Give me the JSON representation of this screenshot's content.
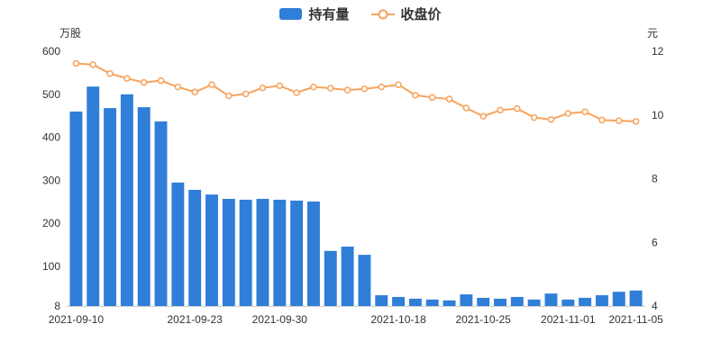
{
  "page": {
    "background": "#ffffff"
  },
  "legend": {
    "items": [
      {
        "label": "持有量",
        "type": "bar",
        "color": "#2f7ed8"
      },
      {
        "label": "收盘价",
        "type": "line",
        "color": "#f7a35c"
      }
    ]
  },
  "chart_data": {
    "type": "bar",
    "subtype": "bar+line combo with dual y-axes",
    "grid": false,
    "legend_position": "top-center",
    "x_ticks": [
      {
        "label": "2021-09-10",
        "index": 0
      },
      {
        "label": "2021-09-23",
        "index": 7
      },
      {
        "label": "2021-09-30",
        "index": 12
      },
      {
        "label": "2021-10-18",
        "index": 19
      },
      {
        "label": "2021-10-25",
        "index": 24
      },
      {
        "label": "2021-11-01",
        "index": 29
      },
      {
        "label": "2021-11-05",
        "index": 33
      }
    ],
    "left_axis": {
      "title": "万股",
      "min": 8,
      "max": 600,
      "ticks": [
        8,
        100,
        200,
        300,
        400,
        500,
        600
      ]
    },
    "right_axis": {
      "title": "元",
      "min": 4,
      "max": 12,
      "ticks": [
        4,
        6,
        8,
        10,
        12
      ]
    },
    "series": [
      {
        "name": "持有量",
        "type": "bar",
        "axis": "left",
        "color": "#2f7ed8",
        "values": [
          460,
          518,
          468,
          500,
          470,
          437,
          295,
          278,
          267,
          257,
          255,
          257,
          255,
          253,
          251,
          136,
          146,
          127,
          33,
          29,
          25,
          23,
          21,
          35,
          27,
          25,
          29,
          23,
          37,
          23,
          27,
          33,
          41,
          44
        ]
      },
      {
        "name": "收盘价",
        "type": "line",
        "axis": "right",
        "color": "#f7a35c",
        "marker": "open-circle",
        "values": [
          11.62,
          11.58,
          11.3,
          11.15,
          11.02,
          11.08,
          10.88,
          10.72,
          10.95,
          10.6,
          10.66,
          10.85,
          10.92,
          10.7,
          10.88,
          10.84,
          10.78,
          10.82,
          10.88,
          10.95,
          10.62,
          10.55,
          10.5,
          10.22,
          9.96,
          10.15,
          10.2,
          9.92,
          9.86,
          10.05,
          10.1,
          9.84,
          9.82,
          9.8
        ]
      }
    ]
  }
}
